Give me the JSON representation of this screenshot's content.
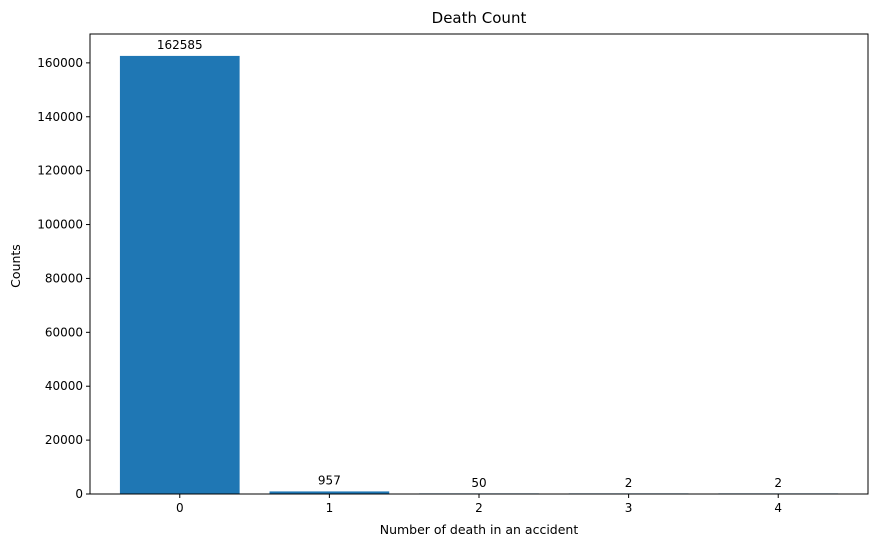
{
  "chart_data": {
    "type": "bar",
    "title": "Death Count",
    "xlabel": "Number of death in an accident",
    "ylabel": "Counts",
    "categories": [
      "0",
      "1",
      "2",
      "3",
      "4"
    ],
    "values": [
      162585,
      957,
      50,
      2,
      2
    ],
    "data_labels": [
      "162585",
      "957",
      "50",
      "2",
      "2"
    ],
    "ylim": [
      0,
      170717
    ],
    "yticks": [
      0,
      20000,
      40000,
      60000,
      80000,
      100000,
      120000,
      140000,
      160000
    ],
    "ytick_labels": [
      "0",
      "20000",
      "40000",
      "60000",
      "80000",
      "100000",
      "120000",
      "140000",
      "160000"
    ],
    "bar_color": "#1f77b4",
    "grid": false
  }
}
